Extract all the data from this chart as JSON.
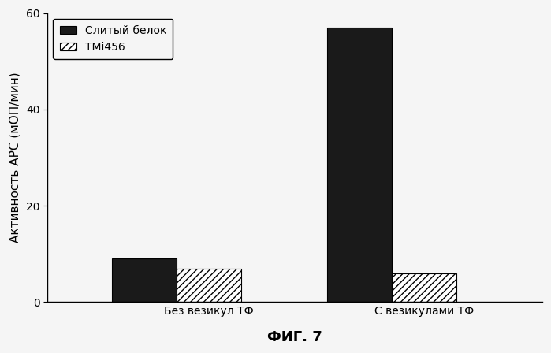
{
  "groups": [
    "Без везикул ТФ",
    "С везикулами ТФ"
  ],
  "series": [
    {
      "label": "Слитый белок",
      "values": [
        9.0,
        57.0
      ],
      "color": "#1a1a1a",
      "hatch": null,
      "edgecolor": "#000000"
    },
    {
      "label": "ТМi456",
      "values": [
        7.0,
        6.0
      ],
      "color": "#ffffff",
      "hatch": "////",
      "edgecolor": "#000000"
    }
  ],
  "ylabel": "Активность АРС (мОП/мин)",
  "xlabel": "ФИГ. 7",
  "ylim": [
    0,
    60
  ],
  "yticks": [
    0,
    20,
    40,
    60
  ],
  "bar_width": 0.3,
  "group_centers": [
    1,
    2
  ],
  "xlim": [
    0.4,
    2.7
  ],
  "background_color": "#f5f5f5",
  "legend_fontsize": 10,
  "axis_fontsize": 11,
  "tick_fontsize": 10,
  "xlabel_fontsize": 13,
  "xtick_positions": [
    1.15,
    2.15
  ]
}
